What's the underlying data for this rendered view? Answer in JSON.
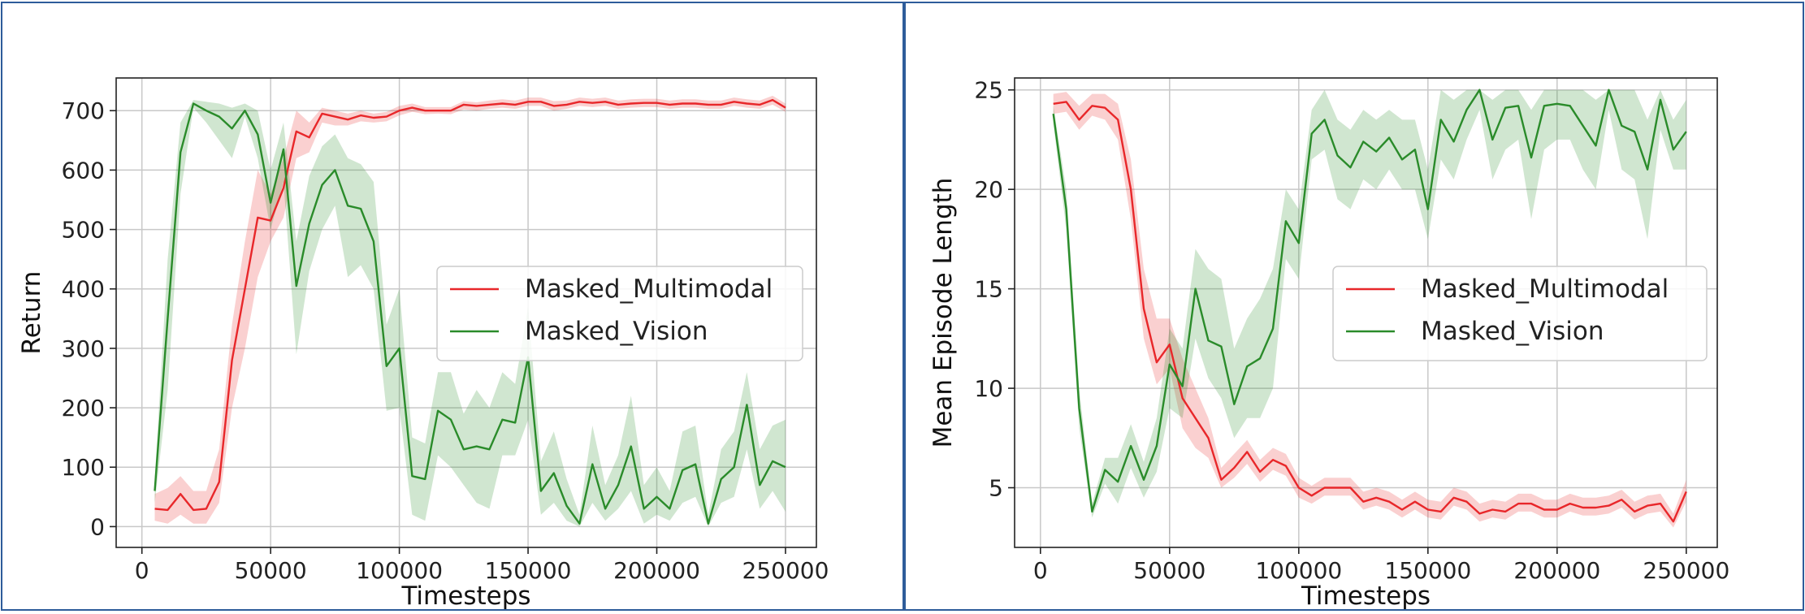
{
  "chart_data": [
    {
      "type": "line",
      "title": "",
      "xlabel": "Timesteps",
      "ylabel": "Return",
      "xlim": [
        -10000,
        262000
      ],
      "ylim": [
        -35,
        755
      ],
      "xticks": [
        0,
        50000,
        100000,
        150000,
        200000,
        250000
      ],
      "yticks": [
        0,
        100,
        200,
        300,
        400,
        500,
        600,
        700
      ],
      "grid": true,
      "legend_position": "center-right",
      "series": [
        {
          "name": "Masked_Multimodal",
          "color": "#e8272a",
          "x": [
            5000,
            10000,
            15000,
            20000,
            25000,
            30000,
            35000,
            40000,
            45000,
            50000,
            55000,
            60000,
            65000,
            70000,
            75000,
            80000,
            85000,
            90000,
            95000,
            100000,
            105000,
            110000,
            115000,
            120000,
            125000,
            130000,
            135000,
            140000,
            145000,
            150000,
            155000,
            160000,
            165000,
            170000,
            175000,
            180000,
            185000,
            190000,
            195000,
            200000,
            205000,
            210000,
            215000,
            220000,
            225000,
            230000,
            235000,
            240000,
            245000,
            250000
          ],
          "y": [
            30,
            28,
            55,
            28,
            30,
            75,
            280,
            400,
            520,
            515,
            570,
            665,
            655,
            695,
            690,
            685,
            692,
            688,
            690,
            700,
            705,
            700,
            700,
            700,
            710,
            708,
            710,
            712,
            710,
            715,
            715,
            708,
            710,
            715,
            713,
            715,
            710,
            712,
            713,
            713,
            710,
            712,
            712,
            710,
            710,
            715,
            712,
            710,
            718,
            705
          ],
          "lower": [
            10,
            5,
            20,
            5,
            5,
            40,
            200,
            300,
            420,
            480,
            520,
            620,
            630,
            680,
            675,
            675,
            682,
            680,
            682,
            692,
            698,
            694,
            695,
            694,
            702,
            700,
            703,
            705,
            703,
            708,
            708,
            700,
            703,
            708,
            706,
            708,
            703,
            705,
            706,
            706,
            703,
            705,
            705,
            703,
            703,
            708,
            705,
            703,
            710,
            698
          ],
          "upper": [
            55,
            65,
            85,
            60,
            60,
            130,
            340,
            480,
            600,
            560,
            620,
            700,
            680,
            705,
            700,
            695,
            700,
            695,
            698,
            708,
            712,
            706,
            706,
            706,
            716,
            714,
            717,
            719,
            717,
            722,
            722,
            716,
            717,
            722,
            720,
            722,
            717,
            719,
            720,
            720,
            717,
            719,
            719,
            717,
            717,
            722,
            719,
            717,
            725,
            712
          ]
        },
        {
          "name": "Masked_Vision",
          "color": "#2a8b2a",
          "x": [
            5000,
            10000,
            15000,
            20000,
            25000,
            30000,
            35000,
            40000,
            45000,
            50000,
            55000,
            60000,
            65000,
            70000,
            75000,
            80000,
            85000,
            90000,
            95000,
            100000,
            105000,
            110000,
            115000,
            120000,
            125000,
            130000,
            135000,
            140000,
            145000,
            150000,
            155000,
            160000,
            165000,
            170000,
            175000,
            180000,
            185000,
            190000,
            195000,
            200000,
            205000,
            210000,
            215000,
            220000,
            225000,
            230000,
            235000,
            240000,
            245000,
            250000
          ],
          "y": [
            60,
            350,
            630,
            712,
            700,
            690,
            670,
            700,
            660,
            545,
            635,
            405,
            510,
            575,
            600,
            540,
            535,
            480,
            270,
            300,
            85,
            80,
            195,
            180,
            130,
            135,
            130,
            180,
            175,
            285,
            60,
            90,
            35,
            5,
            105,
            30,
            70,
            135,
            30,
            50,
            30,
            95,
            105,
            5,
            80,
            100,
            205,
            70,
            110,
            100
          ],
          "lower": [
            40,
            230,
            560,
            705,
            680,
            650,
            620,
            690,
            620,
            500,
            580,
            290,
            430,
            500,
            540,
            420,
            440,
            400,
            195,
            200,
            20,
            10,
            120,
            100,
            70,
            40,
            30,
            120,
            120,
            180,
            20,
            40,
            10,
            0,
            40,
            10,
            30,
            60,
            5,
            20,
            10,
            40,
            50,
            0,
            40,
            50,
            130,
            30,
            60,
            25
          ],
          "upper": [
            80,
            450,
            680,
            718,
            715,
            712,
            705,
            712,
            700,
            600,
            680,
            480,
            590,
            640,
            660,
            620,
            610,
            580,
            340,
            400,
            150,
            140,
            260,
            260,
            190,
            230,
            200,
            260,
            240,
            370,
            110,
            160,
            80,
            20,
            170,
            70,
            120,
            220,
            70,
            100,
            60,
            160,
            170,
            20,
            130,
            160,
            260,
            130,
            170,
            180
          ]
        }
      ]
    },
    {
      "type": "line",
      "title": "",
      "xlabel": "Timesteps",
      "ylabel": "Mean Episode Length",
      "xlim": [
        -10000,
        262000
      ],
      "ylim": [
        2,
        25.6
      ],
      "xticks": [
        0,
        50000,
        100000,
        150000,
        200000,
        250000
      ],
      "yticks": [
        5,
        10,
        15,
        20,
        25
      ],
      "grid": true,
      "legend_position": "center-right",
      "series": [
        {
          "name": "Masked_Multimodal",
          "color": "#e8272a",
          "x": [
            5000,
            10000,
            15000,
            20000,
            25000,
            30000,
            35000,
            40000,
            45000,
            50000,
            55000,
            60000,
            65000,
            70000,
            75000,
            80000,
            85000,
            90000,
            95000,
            100000,
            105000,
            110000,
            115000,
            120000,
            125000,
            130000,
            135000,
            140000,
            145000,
            150000,
            155000,
            160000,
            165000,
            170000,
            175000,
            180000,
            185000,
            190000,
            195000,
            200000,
            205000,
            210000,
            215000,
            220000,
            225000,
            230000,
            235000,
            240000,
            245000,
            250000
          ],
          "y": [
            24.3,
            24.4,
            23.5,
            24.2,
            24.1,
            23.5,
            20,
            14,
            11.3,
            12.2,
            9.5,
            8.5,
            7.5,
            5.4,
            6,
            6.8,
            5.8,
            6.4,
            6.1,
            5,
            4.6,
            5,
            5,
            5,
            4.3,
            4.5,
            4.3,
            3.9,
            4.3,
            3.9,
            3.8,
            4.5,
            4.3,
            3.7,
            3.9,
            3.8,
            4.2,
            4.2,
            3.9,
            3.9,
            4.2,
            4,
            4,
            4.1,
            4.4,
            3.8,
            4.1,
            4.2,
            3.3,
            4.8
          ],
          "lower": [
            23.8,
            23.9,
            23.0,
            23.7,
            23.5,
            22.5,
            18.5,
            12.5,
            10.2,
            11,
            8,
            7,
            6.5,
            5,
            5.5,
            6.2,
            5.3,
            5.9,
            5.6,
            4.5,
            4.2,
            4.6,
            4.6,
            4.6,
            3.9,
            4.1,
            3.9,
            3.5,
            3.9,
            3.5,
            3.4,
            4.1,
            3.9,
            3.3,
            3.5,
            3.4,
            3.8,
            3.8,
            3.5,
            3.5,
            3.8,
            3.6,
            3.6,
            3.7,
            4,
            3.4,
            3.7,
            3.8,
            3,
            4.3
          ],
          "upper": [
            24.8,
            24.9,
            24.2,
            24.8,
            24.8,
            24.3,
            21.5,
            16,
            13.5,
            13.5,
            11.5,
            10,
            8.5,
            6,
            6.7,
            7.4,
            6.4,
            7,
            6.7,
            5.5,
            5.1,
            5.5,
            5.5,
            5.5,
            4.8,
            5,
            4.8,
            4.4,
            4.8,
            4.4,
            4.3,
            5,
            4.8,
            4.2,
            4.4,
            4.3,
            4.7,
            4.7,
            4.4,
            4.4,
            4.7,
            4.5,
            4.5,
            4.6,
            4.9,
            4.3,
            4.6,
            4.7,
            3.7,
            5.4
          ]
        },
        {
          "name": "Masked_Vision",
          "color": "#2a8b2a",
          "x": [
            5000,
            10000,
            15000,
            20000,
            25000,
            30000,
            35000,
            40000,
            45000,
            50000,
            55000,
            60000,
            65000,
            70000,
            75000,
            80000,
            85000,
            90000,
            95000,
            100000,
            105000,
            110000,
            115000,
            120000,
            125000,
            130000,
            135000,
            140000,
            145000,
            150000,
            155000,
            160000,
            165000,
            170000,
            175000,
            180000,
            185000,
            190000,
            195000,
            200000,
            205000,
            210000,
            215000,
            220000,
            225000,
            230000,
            235000,
            240000,
            245000,
            250000
          ],
          "y": [
            23.8,
            19,
            9,
            3.8,
            5.9,
            5.3,
            7.1,
            5.4,
            7.1,
            11.2,
            10.1,
            15,
            12.4,
            12.1,
            9.2,
            11.1,
            11.5,
            13,
            18.4,
            17.3,
            22.8,
            23.5,
            21.7,
            21.1,
            22.4,
            21.9,
            22.6,
            21.5,
            22,
            19,
            23.5,
            22.4,
            24,
            25,
            22.5,
            24.1,
            24.2,
            21.6,
            24.2,
            24.3,
            24.2,
            23.2,
            22.2,
            25,
            23.2,
            22.9,
            21,
            24.5,
            22,
            22.9
          ],
          "lower": [
            23.3,
            18,
            8,
            3.5,
            5.2,
            4.2,
            6,
            4.5,
            5.8,
            9,
            8.5,
            12.5,
            10.5,
            9.5,
            7.5,
            8.5,
            8.5,
            10,
            16.5,
            15.5,
            21.5,
            22,
            19.5,
            19,
            20.5,
            20,
            21,
            20,
            20,
            17.5,
            21.5,
            20.5,
            22.5,
            24,
            20.5,
            22,
            22.5,
            18.5,
            22,
            22.5,
            22.5,
            21,
            20,
            24,
            21,
            20.5,
            17.5,
            23,
            21,
            21
          ],
          "upper": [
            24.2,
            20,
            10,
            4.2,
            6.5,
            6.5,
            8.2,
            6.3,
            8.5,
            13,
            12,
            17,
            16,
            15.5,
            12,
            13.5,
            14.5,
            16,
            20,
            19,
            24,
            25,
            23.5,
            23,
            24,
            23.5,
            24,
            23.5,
            23.5,
            21,
            25,
            24.5,
            25,
            25,
            24.5,
            25,
            25,
            24,
            25,
            25,
            25,
            25,
            24.5,
            25,
            25,
            25,
            23.5,
            25,
            23.5,
            24.5
          ]
        }
      ]
    }
  ]
}
